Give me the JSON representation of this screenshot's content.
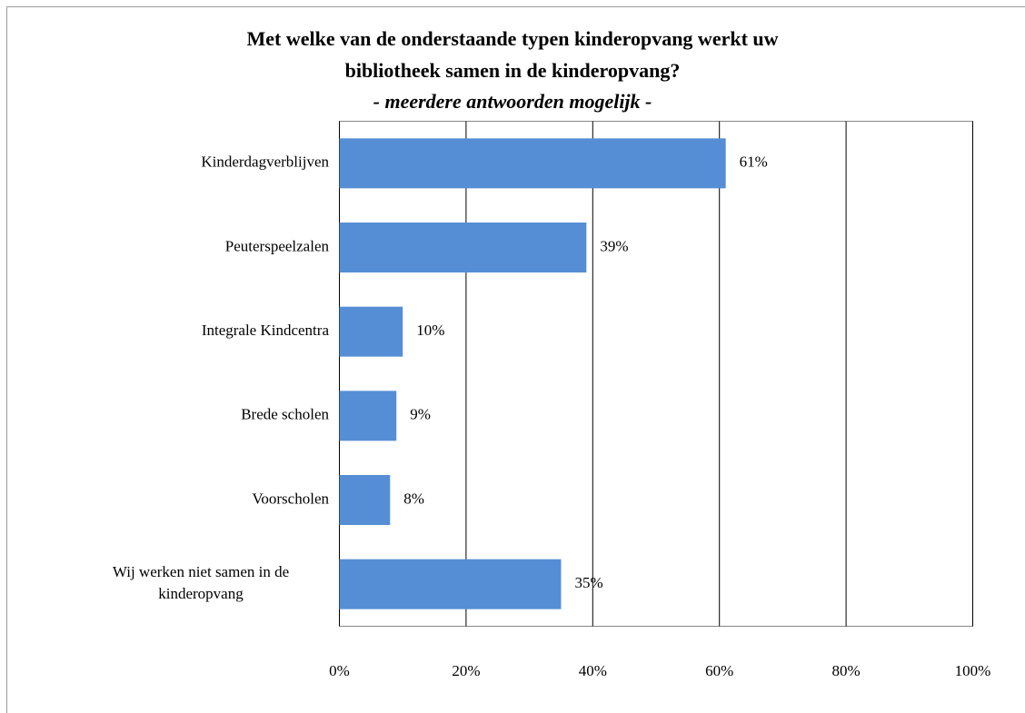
{
  "chart_data": {
    "type": "hbar",
    "title": [
      "Met welke van de onderstaande typen kinderopvang werkt uw",
      "bibliotheek samen in de kinderopvang?"
    ],
    "subtitle": "- meerdere antwoorden mogelijk -",
    "categories": [
      "Kinderdagverblijven",
      "Peuterspeelzalen",
      "Integrale Kindcentra",
      "Brede scholen",
      "Voorscholen",
      "Wij werken niet samen in de kinderopvang"
    ],
    "values": [
      61,
      39,
      10,
      9,
      8,
      35
    ],
    "value_labels": [
      "61%",
      "39%",
      "10%",
      "9%",
      "8%",
      "35%"
    ],
    "color": "#558ed5",
    "xlim": [
      0,
      100
    ],
    "xticks": [
      {
        "value": 0,
        "label": "0%"
      },
      {
        "value": 20,
        "label": "20%"
      },
      {
        "value": 40,
        "label": "40%"
      },
      {
        "value": 60,
        "label": "60%"
      },
      {
        "value": 80,
        "label": "80%"
      },
      {
        "value": 100,
        "label": "100%"
      }
    ],
    "grid": true
  }
}
